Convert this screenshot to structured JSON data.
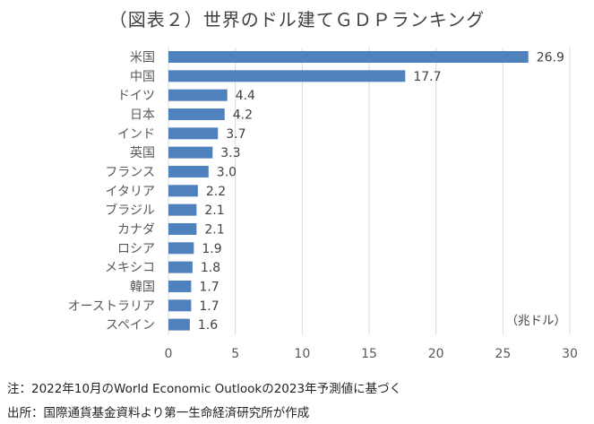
{
  "chart_data": {
    "type": "bar",
    "orientation": "horizontal",
    "title": "（図表２）世界のドル建てＧＤＰランキング",
    "categories": [
      "米国",
      "中国",
      "ドイツ",
      "日本",
      "インド",
      "英国",
      "フランス",
      "イタリア",
      "ブラジル",
      "カナダ",
      "ロシア",
      "メキシコ",
      "韓国",
      "オーストラリア",
      "スペイン"
    ],
    "values": [
      26.9,
      17.7,
      4.4,
      4.2,
      3.7,
      3.3,
      3.0,
      2.2,
      2.1,
      2.1,
      1.9,
      1.8,
      1.7,
      1.7,
      1.6
    ],
    "value_labels": [
      "26.9",
      "17.7",
      "4.4",
      "4.2",
      "3.7",
      "3.3",
      "3.0",
      "2.2",
      "2.1",
      "2.1",
      "1.9",
      "1.8",
      "1.7",
      "1.7",
      "1.6"
    ],
    "xlim": [
      0,
      30
    ],
    "xticks": [
      "0",
      "5",
      "10",
      "15",
      "20",
      "25",
      "30"
    ],
    "unit_label": "（兆ドル）",
    "grid": "vertical",
    "bar_color": "#4f81bd"
  },
  "notes": {
    "note": "注：2022年10月のWorld Economic Outlookの2023年予測値に基づく",
    "source": "出所：国際通貨基金資料より第一生命経済研究所が作成"
  }
}
